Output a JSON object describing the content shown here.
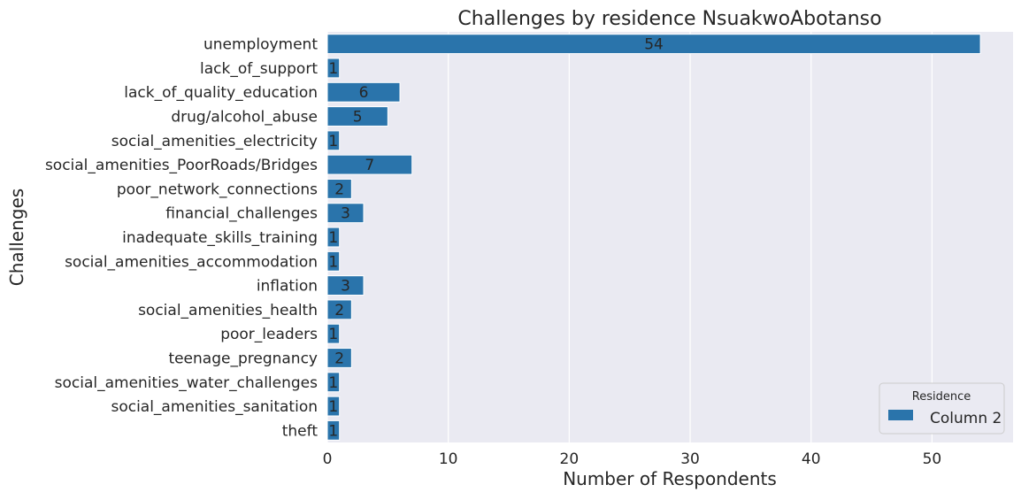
{
  "chart_data": {
    "type": "bar",
    "orientation": "horizontal",
    "title": "Challenges by residence NsuakwoAbotanso",
    "xlabel": "Number of Respondents",
    "ylabel": "Challenges",
    "xlim": [
      0,
      56.7
    ],
    "xticks": [
      0,
      10,
      20,
      30,
      40,
      50
    ],
    "grid": true,
    "legend": {
      "title": "Residence",
      "position": "bottom-right"
    },
    "categories": [
      "unemployment",
      "lack_of_support",
      "lack_of_quality_education",
      "drug/alcohol_abuse",
      "social_amenities_electricity",
      "social_amenities_PoorRoads/Bridges",
      "poor_network_connections",
      "financial_challenges",
      "inadequate_skills_training",
      "social_amenities_accommodation",
      "inflation",
      "social_amenities_health",
      "poor_leaders",
      "teenage_pregnancy",
      "social_amenities_water_challenges",
      "social_amenities_sanitation",
      "theft"
    ],
    "series": [
      {
        "name": "Column 2",
        "color": "#2a74ab",
        "values": [
          54,
          1,
          6,
          5,
          1,
          7,
          2,
          3,
          1,
          1,
          3,
          2,
          1,
          2,
          1,
          1,
          1
        ]
      }
    ]
  },
  "colors": {
    "plot_background": "#eaeaf2",
    "grid": "#ffffff",
    "bar_edge": "#ffffff"
  }
}
